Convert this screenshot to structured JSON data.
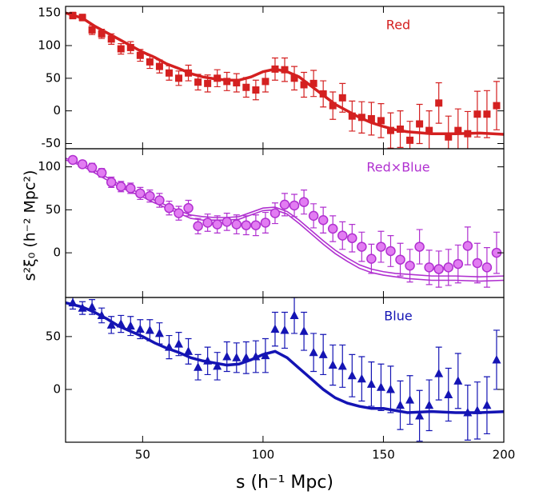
{
  "chart_data": [
    {
      "type": "errorbar",
      "label": "Red",
      "color": "#d42020",
      "marker": "square",
      "xlim": [
        18,
        200
      ],
      "xticks": [
        50,
        100,
        150,
        200
      ],
      "ylim": [
        -58,
        160
      ],
      "yticks": [
        -50,
        0,
        50,
        100,
        150
      ],
      "x": [
        21,
        25,
        29,
        33,
        37,
        41,
        45,
        49,
        53,
        57,
        61,
        65,
        69,
        73,
        77,
        81,
        85,
        89,
        93,
        97,
        101,
        105,
        109,
        113,
        117,
        121,
        125,
        129,
        133,
        137,
        141,
        145,
        149,
        153,
        157,
        161,
        165,
        169,
        173,
        177,
        181,
        185,
        189,
        193,
        197
      ],
      "values": [
        146,
        143,
        124,
        118,
        110,
        95,
        97,
        85,
        75,
        68,
        58,
        50,
        58,
        44,
        42,
        50,
        45,
        43,
        36,
        32,
        45,
        64,
        63,
        50,
        40,
        42,
        26,
        8,
        20,
        -8,
        -10,
        -12,
        -15,
        -30,
        -28,
        -45,
        -20,
        -30,
        12,
        -40,
        -30,
        -35,
        -5,
        -5,
        8
      ],
      "errors": [
        5,
        5,
        7,
        7,
        8,
        8,
        9,
        9,
        10,
        10,
        11,
        11,
        12,
        12,
        13,
        13,
        14,
        14,
        15,
        15,
        16,
        17,
        18,
        18,
        19,
        20,
        20,
        21,
        22,
        23,
        24,
        25,
        26,
        27,
        28,
        29,
        30,
        30,
        31,
        32,
        33,
        34,
        35,
        36,
        37
      ],
      "model_x": [
        18,
        25,
        30,
        35,
        40,
        45,
        50,
        55,
        60,
        65,
        70,
        75,
        80,
        85,
        90,
        95,
        100,
        105,
        110,
        115,
        120,
        125,
        130,
        135,
        140,
        145,
        150,
        155,
        160,
        170,
        180,
        190,
        200
      ],
      "models": [
        {
          "values": [
            150,
            142,
            130,
            120,
            110,
            100,
            90,
            82,
            72,
            65,
            57,
            52,
            49,
            47,
            47,
            52,
            60,
            64,
            60,
            52,
            38,
            24,
            10,
            0,
            -10,
            -18,
            -24,
            -29,
            -32,
            -35,
            -35,
            -34,
            -36
          ]
        }
      ]
    },
    {
      "type": "errorbar",
      "label": "Red×Blue",
      "color": "#b030d0",
      "fill": "#e27cf2",
      "marker": "circle",
      "ylabel": "s²ξ₀ (h⁻² Mpc²)",
      "xlim": [
        18,
        200
      ],
      "xticks": [
        50,
        100,
        150,
        200
      ],
      "ylim": [
        -52,
        121
      ],
      "yticks": [
        0,
        50,
        100
      ],
      "x": [
        21,
        25,
        29,
        33,
        37,
        41,
        45,
        49,
        53,
        57,
        61,
        65,
        69,
        73,
        77,
        81,
        85,
        89,
        93,
        97,
        101,
        105,
        109,
        113,
        117,
        121,
        125,
        129,
        133,
        137,
        141,
        145,
        149,
        153,
        157,
        161,
        165,
        169,
        173,
        177,
        181,
        185,
        189,
        193,
        197
      ],
      "values": [
        108,
        103,
        99,
        93,
        82,
        77,
        75,
        69,
        66,
        61,
        52,
        46,
        52,
        31,
        35,
        33,
        36,
        33,
        32,
        32,
        35,
        46,
        56,
        55,
        59,
        43,
        38,
        28,
        20,
        17,
        7,
        -7,
        7,
        2,
        -8,
        -15,
        7,
        -17,
        -19,
        -17,
        -13,
        8,
        -12,
        -17,
        0
      ],
      "errors": [
        4,
        4,
        5,
        5,
        6,
        6,
        6,
        7,
        7,
        8,
        8,
        8,
        9,
        9,
        10,
        10,
        10,
        11,
        11,
        12,
        12,
        12,
        13,
        13,
        14,
        14,
        15,
        15,
        16,
        16,
        17,
        17,
        18,
        18,
        19,
        19,
        20,
        20,
        21,
        21,
        22,
        22,
        23,
        23,
        24
      ],
      "model_x": [
        18,
        25,
        30,
        35,
        40,
        45,
        50,
        55,
        60,
        65,
        70,
        75,
        80,
        85,
        90,
        95,
        100,
        105,
        110,
        115,
        120,
        125,
        130,
        135,
        140,
        145,
        150,
        155,
        160,
        170,
        180,
        190,
        200
      ],
      "models": [
        {
          "values": [
            110,
            103,
            96,
            88,
            80,
            74,
            68,
            61,
            55,
            49,
            44,
            42,
            41,
            41,
            42,
            47,
            52,
            53,
            48,
            38,
            26,
            14,
            3,
            -6,
            -14,
            -19,
            -22,
            -24,
            -25,
            -27,
            -27,
            -28,
            -27
          ]
        },
        {
          "values": [
            108,
            101,
            93,
            85,
            77,
            71,
            65,
            58,
            52,
            46,
            40,
            38,
            38,
            38,
            39,
            44,
            49,
            50,
            45,
            34,
            22,
            10,
            -1,
            -10,
            -18,
            -23,
            -26,
            -28,
            -30,
            -32,
            -32,
            -33,
            -32
          ]
        }
      ]
    },
    {
      "type": "errorbar",
      "label": "Blue",
      "color": "#1414b4",
      "marker": "triangle",
      "xlabel": "s (h⁻¹ Mpc)",
      "xlim": [
        18,
        200
      ],
      "xticks": [
        50,
        100,
        150,
        200
      ],
      "ylim": [
        -50,
        87
      ],
      "yticks": [
        0,
        50
      ],
      "x": [
        21,
        25,
        29,
        33,
        37,
        41,
        45,
        49,
        53,
        57,
        61,
        65,
        69,
        73,
        77,
        81,
        85,
        89,
        93,
        97,
        101,
        105,
        109,
        113,
        117,
        121,
        125,
        129,
        133,
        137,
        141,
        145,
        149,
        153,
        157,
        161,
        165,
        169,
        173,
        177,
        181,
        185,
        189,
        193,
        197
      ],
      "values": [
        82,
        77,
        78,
        70,
        61,
        62,
        60,
        57,
        56,
        53,
        40,
        43,
        36,
        21,
        27,
        22,
        31,
        30,
        30,
        31,
        32,
        57,
        56,
        70,
        55,
        35,
        33,
        23,
        22,
        13,
        10,
        5,
        2,
        0,
        -15,
        -10,
        -25,
        -15,
        15,
        -5,
        8,
        -22,
        -20,
        -15,
        28
      ],
      "errors": [
        6,
        6,
        7,
        7,
        8,
        8,
        9,
        9,
        10,
        10,
        11,
        11,
        12,
        12,
        13,
        13,
        14,
        14,
        15,
        15,
        16,
        16,
        17,
        17,
        18,
        18,
        19,
        19,
        20,
        20,
        21,
        21,
        22,
        22,
        23,
        23,
        24,
        24,
        25,
        25,
        26,
        26,
        27,
        27,
        28
      ],
      "model_x": [
        18,
        25,
        30,
        35,
        40,
        45,
        50,
        55,
        60,
        65,
        70,
        75,
        80,
        85,
        90,
        95,
        100,
        105,
        110,
        115,
        120,
        125,
        130,
        135,
        140,
        145,
        150,
        155,
        160,
        170,
        180,
        190,
        200
      ],
      "models": [
        {
          "values": [
            82,
            78,
            73,
            67,
            60,
            55,
            50,
            44,
            39,
            35,
            30,
            27,
            25,
            23,
            24,
            28,
            33,
            36,
            30,
            20,
            10,
            0,
            -8,
            -13,
            -16,
            -18,
            -18,
            -20,
            -22,
            -21,
            -22,
            -22,
            -21
          ]
        }
      ]
    }
  ]
}
